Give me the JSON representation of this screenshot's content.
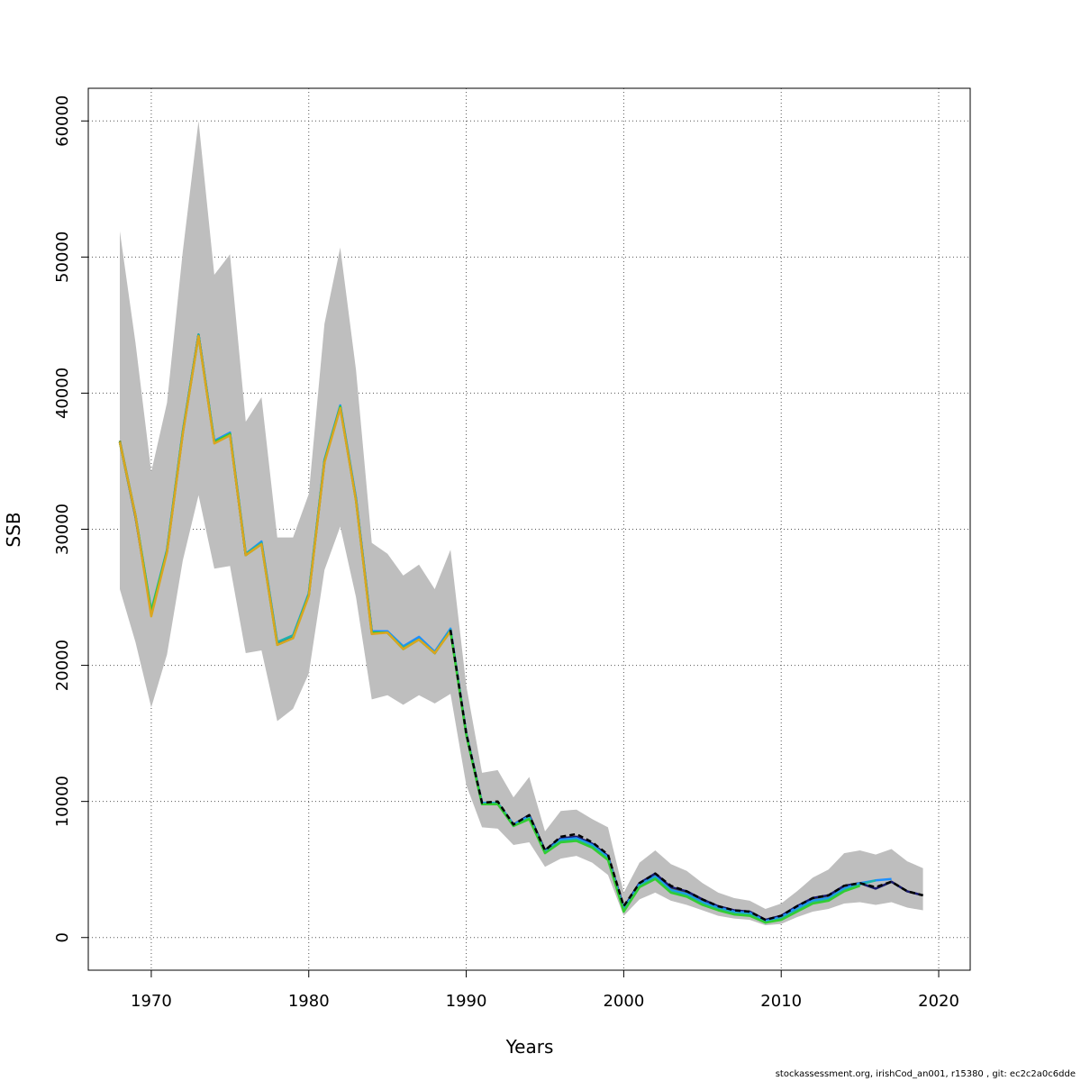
{
  "chart_data": {
    "type": "line",
    "title": "",
    "xlabel": "Years",
    "ylabel": "SSB",
    "xlim": [
      1966,
      2022
    ],
    "ylim": [
      -2400,
      62400
    ],
    "x_ticks": [
      1970,
      1980,
      1990,
      2000,
      2010,
      2020
    ],
    "y_ticks": [
      0,
      10000,
      20000,
      30000,
      40000,
      50000,
      60000
    ],
    "grid": true,
    "band_color": "#bebebe",
    "band": {
      "x": [
        1968,
        1969,
        1970,
        1971,
        1972,
        1973,
        1974,
        1975,
        1976,
        1977,
        1978,
        1979,
        1980,
        1981,
        1982,
        1983,
        1984,
        1985,
        1986,
        1987,
        1988,
        1989,
        1990,
        1991,
        1992,
        1993,
        1994,
        1995,
        1996,
        1997,
        1998,
        1999,
        2000,
        2001,
        2002,
        2003,
        2004,
        2005,
        2006,
        2007,
        2008,
        2009,
        2010,
        2011,
        2012,
        2013,
        2014,
        2015,
        2016,
        2017,
        2018,
        2019
      ],
      "upper": [
        51900,
        43700,
        34200,
        39300,
        50400,
        60000,
        48700,
        50200,
        37900,
        39700,
        29400,
        29400,
        32600,
        45100,
        50700,
        41700,
        29000,
        28200,
        26600,
        27400,
        25600,
        28500,
        18500,
        12100,
        12300,
        10300,
        11800,
        7800,
        9300,
        9400,
        8700,
        8100,
        3300,
        5500,
        6400,
        5400,
        4900,
        4000,
        3300,
        2900,
        2700,
        2100,
        2500,
        3400,
        4400,
        5000,
        6200,
        6400,
        6100,
        6500,
        5600,
        5100
      ],
      "lower": [
        25600,
        21700,
        16900,
        20800,
        27700,
        32500,
        27100,
        27300,
        20900,
        21100,
        15900,
        16800,
        19400,
        27000,
        30200,
        25000,
        17500,
        17800,
        17100,
        17800,
        17200,
        17900,
        11200,
        8100,
        8000,
        6800,
        7000,
        5200,
        5800,
        6000,
        5500,
        4600,
        1600,
        2800,
        3300,
        2700,
        2400,
        2000,
        1600,
        1400,
        1300,
        900,
        1000,
        1500,
        1900,
        2100,
        2500,
        2600,
        2400,
        2600,
        2200,
        2000
      ]
    },
    "series": [
      {
        "color": "#6b8e23",
        "x": [
          1968,
          1969,
          1970,
          1971,
          1972,
          1973,
          1974,
          1975,
          1976,
          1977,
          1978,
          1979,
          1980,
          1981,
          1982,
          1983,
          1984,
          1985,
          1986,
          1987,
          1988,
          1989,
          1990,
          1991,
          1992,
          1993,
          1994,
          1995,
          1996,
          1997,
          1998,
          1999,
          2000,
          2001,
          2002,
          2003,
          2004,
          2005,
          2006,
          2007,
          2008,
          2009,
          2010,
          2011,
          2012,
          2013,
          2014,
          2015,
          2016,
          2017,
          2018,
          2019
        ],
        "values": [
          36500,
          31000,
          23900,
          28400,
          37100,
          44300,
          36400,
          37000,
          28100,
          29000,
          21600,
          22100,
          25200,
          35000,
          39000,
          32200,
          22400,
          22400,
          21300,
          21900,
          20900,
          22600,
          14900,
          9800,
          9900,
          8300,
          8900,
          6300,
          7200,
          7300,
          6800,
          5900,
          2100,
          3900,
          4600,
          3600,
          3300,
          2700,
          2200,
          1900,
          1800,
          1200,
          1500,
          2200,
          2800,
          3000,
          3800,
          4000,
          3600,
          4100,
          3400,
          3100
        ]
      },
      {
        "color": "#191970",
        "x": [
          1968,
          1969,
          1970,
          1971,
          1972,
          1973,
          1974,
          1975,
          1976,
          1977,
          1978,
          1979,
          1980,
          1981,
          1982,
          1983,
          1984,
          1985,
          1986,
          1987,
          1988,
          1989,
          1990,
          1991,
          1992,
          1993,
          1994,
          1995,
          1996,
          1997,
          1998,
          1999,
          2000,
          2001,
          2002,
          2003,
          2004,
          2005,
          2006,
          2007,
          2008,
          2009,
          2010,
          2011,
          2012,
          2013,
          2014,
          2015,
          2016,
          2017,
          2018,
          2019
        ],
        "values": [
          36400,
          30900,
          23900,
          28400,
          37100,
          44300,
          36400,
          37000,
          28100,
          29000,
          21600,
          22100,
          25200,
          35000,
          39000,
          32200,
          22500,
          22400,
          21300,
          22000,
          20900,
          22600,
          15000,
          9900,
          9900,
          8300,
          9000,
          6400,
          7300,
          7400,
          6900,
          6000,
          2200,
          4000,
          4700,
          3700,
          3400,
          2800,
          2300,
          2000,
          1900,
          1300,
          1600,
          2300,
          2900,
          3100,
          3800,
          4000,
          3600,
          4100,
          3400,
          3100
        ]
      },
      {
        "color": "#1e90ff",
        "x": [
          1968,
          1969,
          1970,
          1971,
          1972,
          1973,
          1974,
          1975,
          1976,
          1977,
          1978,
          1979,
          1980,
          1981,
          1982,
          1983,
          1984,
          1985,
          1986,
          1987,
          1988,
          1989,
          1990,
          1991,
          1992,
          1993,
          1994,
          1995,
          1996,
          1997,
          1998,
          1999,
          2000,
          2001,
          2002,
          2003,
          2004,
          2005,
          2006,
          2007,
          2008,
          2009,
          2010,
          2011,
          2012,
          2013,
          2014,
          2015,
          2016,
          2017
        ],
        "values": [
          36400,
          31000,
          24000,
          28500,
          37200,
          44300,
          36500,
          37100,
          28200,
          29100,
          21700,
          22200,
          25300,
          35100,
          39100,
          32300,
          22500,
          22500,
          21400,
          22100,
          21000,
          22700,
          15000,
          9900,
          9900,
          8300,
          8900,
          6300,
          7200,
          7300,
          6800,
          5900,
          2100,
          3900,
          4500,
          3500,
          3200,
          2600,
          2200,
          1900,
          1800,
          1200,
          1500,
          2200,
          2700,
          2900,
          3600,
          4000,
          4200,
          4300
        ]
      },
      {
        "color": "#20b2aa",
        "x": [
          1968,
          1969,
          1970,
          1971,
          1972,
          1973,
          1974,
          1975,
          1976,
          1977,
          1978,
          1979,
          1980,
          1981,
          1982,
          1983,
          1984,
          1985,
          1986,
          1987,
          1988,
          1989,
          1990,
          1991,
          1992,
          1993,
          1994,
          1995,
          1996,
          1997,
          1998,
          1999,
          2000,
          2001,
          2002,
          2003,
          2004,
          2005,
          2006,
          2007,
          2008,
          2009,
          2010,
          2011,
          2012,
          2013,
          2014,
          2015,
          2016
        ],
        "values": [
          36400,
          31000,
          24000,
          28400,
          37100,
          44300,
          36400,
          37000,
          28200,
          29000,
          21700,
          22200,
          25200,
          35000,
          39000,
          32200,
          22400,
          22400,
          21300,
          21900,
          20900,
          22600,
          14900,
          9800,
          9900,
          8200,
          8800,
          6300,
          7100,
          7200,
          6700,
          5800,
          2000,
          3800,
          4400,
          3400,
          3100,
          2500,
          2100,
          1800,
          1700,
          1100,
          1400,
          2000,
          2600,
          2800,
          3500,
          3900,
          4200
        ]
      },
      {
        "color": "#32cd32",
        "x": [
          1968,
          1969,
          1970,
          1971,
          1972,
          1973,
          1974,
          1975,
          1976,
          1977,
          1978,
          1979,
          1980,
          1981,
          1982,
          1983,
          1984,
          1985,
          1986,
          1987,
          1988,
          1989,
          1990,
          1991,
          1992,
          1993,
          1994,
          1995,
          1996,
          1997,
          1998,
          1999,
          2000,
          2001,
          2002,
          2003,
          2004,
          2005,
          2006,
          2007,
          2008,
          2009,
          2010,
          2011,
          2012,
          2013,
          2014,
          2015
        ],
        "values": [
          36400,
          31000,
          23900,
          28400,
          37100,
          44200,
          36400,
          37000,
          28100,
          28900,
          21500,
          22000,
          25200,
          35000,
          39000,
          32100,
          22400,
          22400,
          21200,
          21900,
          20900,
          22500,
          14900,
          9800,
          9800,
          8200,
          8700,
          6200,
          7000,
          7100,
          6600,
          5700,
          1900,
          3700,
          4300,
          3300,
          3000,
          2400,
          2000,
          1700,
          1600,
          1100,
          1300,
          1900,
          2500,
          2700,
          3400,
          3800
        ]
      },
      {
        "color": "#daa520",
        "x": [
          1968,
          1969,
          1970,
          1971,
          1972,
          1973,
          1974,
          1975,
          1976,
          1977,
          1978,
          1979,
          1980,
          1981,
          1982,
          1983,
          1984,
          1985,
          1986,
          1987,
          1988,
          1989
        ],
        "values": [
          36400,
          31000,
          23600,
          28300,
          37000,
          44200,
          36300,
          36900,
          28100,
          28900,
          21500,
          22000,
          25100,
          34900,
          38900,
          32100,
          22300,
          22400,
          21200,
          21900,
          20900,
          22500
        ]
      },
      {
        "color": "#000000",
        "dashed": true,
        "x": [
          1989,
          1990,
          1991,
          1992,
          1993,
          1994,
          1995,
          1996,
          1997,
          1998,
          1999,
          2000,
          2001,
          2002,
          2003,
          2004,
          2005,
          2006,
          2007,
          2008,
          2009,
          2010,
          2011,
          2012,
          2013,
          2014,
          2015,
          2016,
          2017,
          2018,
          2019
        ],
        "values": [
          22600,
          15000,
          9900,
          10000,
          8300,
          9000,
          6400,
          7400,
          7600,
          7000,
          6100,
          2300,
          4000,
          4700,
          3800,
          3400,
          2800,
          2300,
          2000,
          1900,
          1300,
          1600,
          2300,
          2900,
          3100,
          3800,
          4000,
          3700,
          4100,
          3400,
          3100
        ]
      }
    ]
  },
  "footer": "stockassessment.org, irishCod_an001, r15380 , git: ec2c2a0c6dde"
}
